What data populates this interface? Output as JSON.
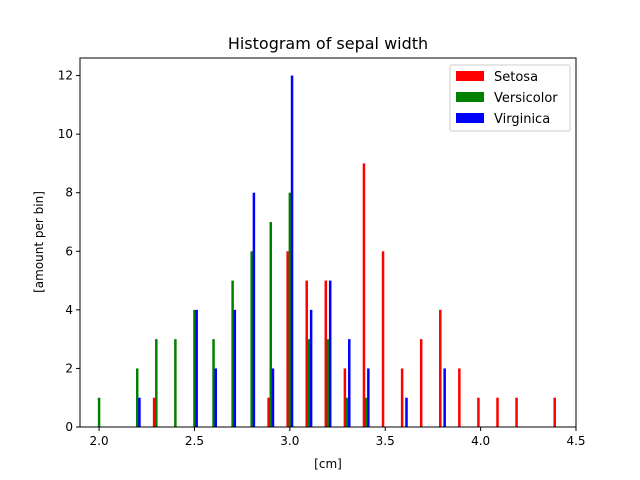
{
  "chart_data": {
    "type": "bar",
    "title": "Histogram of sepal width",
    "xlabel": "[cm]",
    "ylabel": "[amount per bin]",
    "xlim": [
      1.9,
      4.5
    ],
    "ylim": [
      0,
      12.6
    ],
    "xticks": [
      "2.0",
      "2.5",
      "3.0",
      "3.5",
      "4.0",
      "4.5"
    ],
    "yticks": [
      "0",
      "2",
      "4",
      "6",
      "8",
      "10",
      "12"
    ],
    "legend_position": "top-right",
    "series": [
      {
        "name": "Setosa",
        "color": "#ff0000",
        "points": [
          {
            "x": 2.3,
            "y": 1
          },
          {
            "x": 2.9,
            "y": 1
          },
          {
            "x": 3.0,
            "y": 6
          },
          {
            "x": 3.1,
            "y": 5
          },
          {
            "x": 3.2,
            "y": 5
          },
          {
            "x": 3.3,
            "y": 2
          },
          {
            "x": 3.4,
            "y": 9
          },
          {
            "x": 3.5,
            "y": 6
          },
          {
            "x": 3.6,
            "y": 2
          },
          {
            "x": 3.7,
            "y": 3
          },
          {
            "x": 3.8,
            "y": 4
          },
          {
            "x": 3.9,
            "y": 2
          },
          {
            "x": 4.0,
            "y": 1
          },
          {
            "x": 4.1,
            "y": 1
          },
          {
            "x": 4.2,
            "y": 1
          },
          {
            "x": 4.4,
            "y": 1
          }
        ]
      },
      {
        "name": "Versicolor",
        "color": "#008000",
        "points": [
          {
            "x": 2.0,
            "y": 1
          },
          {
            "x": 2.2,
            "y": 2
          },
          {
            "x": 2.3,
            "y": 3
          },
          {
            "x": 2.4,
            "y": 3
          },
          {
            "x": 2.5,
            "y": 4
          },
          {
            "x": 2.6,
            "y": 3
          },
          {
            "x": 2.7,
            "y": 5
          },
          {
            "x": 2.8,
            "y": 6
          },
          {
            "x": 2.9,
            "y": 7
          },
          {
            "x": 3.0,
            "y": 8
          },
          {
            "x": 3.1,
            "y": 3
          },
          {
            "x": 3.2,
            "y": 3
          },
          {
            "x": 3.3,
            "y": 1
          },
          {
            "x": 3.4,
            "y": 1
          }
        ]
      },
      {
        "name": "Virginica",
        "color": "#0000ff",
        "points": [
          {
            "x": 2.2,
            "y": 1
          },
          {
            "x": 2.5,
            "y": 4
          },
          {
            "x": 2.6,
            "y": 2
          },
          {
            "x": 2.7,
            "y": 4
          },
          {
            "x": 2.8,
            "y": 8
          },
          {
            "x": 2.9,
            "y": 2
          },
          {
            "x": 3.0,
            "y": 12
          },
          {
            "x": 3.1,
            "y": 4
          },
          {
            "x": 3.2,
            "y": 5
          },
          {
            "x": 3.3,
            "y": 3
          },
          {
            "x": 3.4,
            "y": 2
          },
          {
            "x": 3.6,
            "y": 1
          },
          {
            "x": 3.8,
            "y": 2
          }
        ]
      }
    ]
  }
}
